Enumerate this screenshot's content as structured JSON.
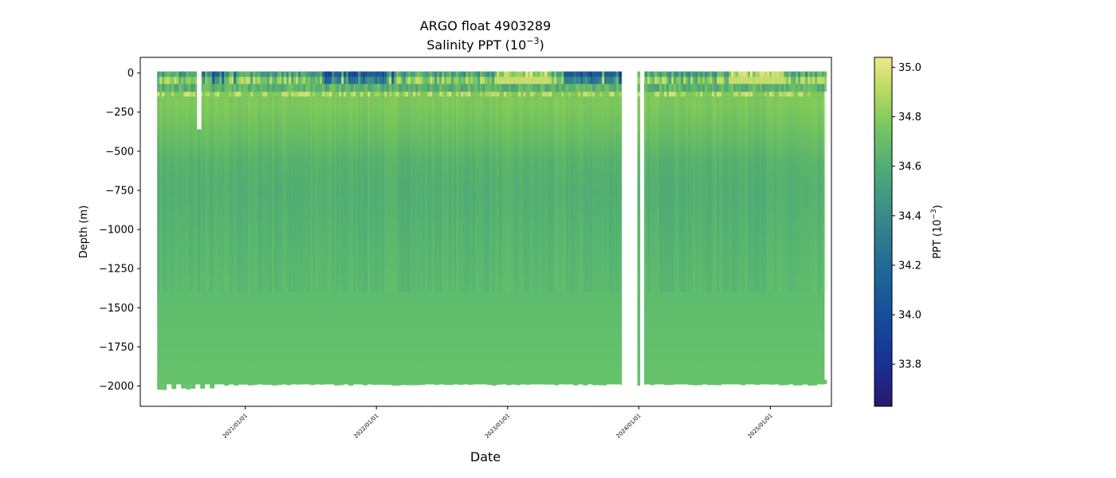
{
  "chart_data": {
    "type": "heatmap",
    "title": "ARGO float 4903289",
    "subtitle_prefix": "Salinity PPT (10",
    "subtitle_exp": "−3",
    "subtitle_suffix": ")",
    "xlabel": "Date",
    "ylabel": "Depth (m)",
    "colorbar_label_prefix": "PPT (10",
    "colorbar_label_exp": "−3",
    "colorbar_label_suffix": ")",
    "colormap": "haline",
    "colorbar_range": [
      33.63,
      35.04
    ],
    "colorbar_ticks": [
      33.8,
      34.0,
      34.2,
      34.4,
      34.6,
      34.8,
      35.0
    ],
    "colorbar_tick_labels": [
      "33.8",
      "34.0",
      "34.2",
      "34.4",
      "34.6",
      "34.8",
      "35.0"
    ],
    "x_range": [
      "2020-03-15",
      "2025-06-20"
    ],
    "x_ticks": [
      "2021-01-01",
      "2022-01-01",
      "2023-01-01",
      "2024-01-01",
      "2025-01-01"
    ],
    "x_tick_labels": [
      "2021/01/01",
      "2022/01/01",
      "2023/01/01",
      "2024/01/01",
      "2025/01/01"
    ],
    "y_range": [
      -2130,
      100
    ],
    "y_ticks": [
      0,
      -250,
      -500,
      -750,
      -1000,
      -1250,
      -1500,
      -1750,
      -2000
    ],
    "y_tick_labels": [
      "0",
      "−250",
      "−500",
      "−750",
      "−1000",
      "−1250",
      "−1500",
      "−1750",
      "−2000"
    ],
    "data_start": "2020-05-01",
    "data_end": "2025-06-01",
    "gaps": [
      {
        "start": "2020-08-20",
        "end": "2020-09-01",
        "depth_range": [
          0,
          -360
        ]
      },
      {
        "start": "2023-11-15",
        "end": "2023-12-28",
        "depth_range": [
          0,
          -2130
        ]
      },
      {
        "start": "2024-01-05",
        "end": "2024-01-16",
        "depth_range": [
          0,
          -2130
        ]
      }
    ],
    "profile_bottom_depth": -1990,
    "salinity_profile": [
      {
        "depth": 0,
        "salinity": 34.55
      },
      {
        "depth": -50,
        "salinity": 34.5
      },
      {
        "depth": -100,
        "salinity": 34.62
      },
      {
        "depth": -150,
        "salinity": 34.72
      },
      {
        "depth": -250,
        "salinity": 34.75
      },
      {
        "depth": -400,
        "salinity": 34.66
      },
      {
        "depth": -550,
        "salinity": 34.56
      },
      {
        "depth": -700,
        "salinity": 34.53
      },
      {
        "depth": -1000,
        "salinity": 34.56
      },
      {
        "depth": -1500,
        "salinity": 34.6
      },
      {
        "depth": -2000,
        "salinity": 34.63
      }
    ],
    "grid": false,
    "legend": "colorbar-right"
  }
}
